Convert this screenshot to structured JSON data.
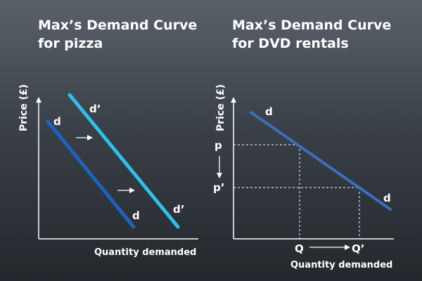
{
  "left_panel": {
    "title_line1": "Max’s Demand Curve",
    "title_line2": "for pizza",
    "y_axis_label": "Price (£)",
    "x_axis_label": "Quantity demanded",
    "curve_d_label_top": "d",
    "curve_d_label_bottom": "d",
    "curve_d_prime_label_top": "d’",
    "curve_d_prime_label_bottom": "d’",
    "colors": {
      "curve_d": "#1a63c4",
      "curve_d_prime": "#2cc0ef",
      "arrow": "#ffffff"
    }
  },
  "right_panel": {
    "title_line1": "Max’s Demand Curve",
    "title_line2": "for DVD rentals",
    "y_axis_label": "Price (£)",
    "x_axis_label": "Quantity demanded",
    "curve_label_top": "d",
    "curve_label_bottom": "d",
    "price_p": "p",
    "price_p_prime": "p’",
    "quantity_q": "Q",
    "quantity_q_prime": "Q’",
    "colors": {
      "curve": "#3a6fc0",
      "guide": "#ffffff"
    }
  }
}
